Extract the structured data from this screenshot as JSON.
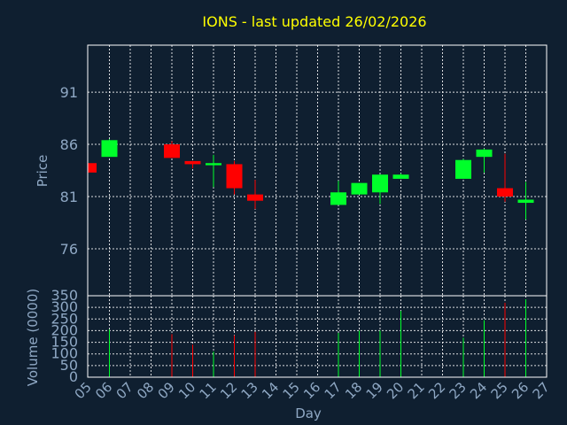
{
  "chart_data": {
    "type": "candlestick",
    "title": "IONS - last updated 26/02/2026",
    "colors": {
      "up": "#00ff2a",
      "down": "#ff0000",
      "background": "#0f1f30",
      "text": "#8fa8c4",
      "title": "#ffff00",
      "grid": "#ffffff"
    },
    "price_panel": {
      "ylabel": "Price",
      "ylim": [
        71.5,
        95.5
      ],
      "yticks": [
        76,
        81,
        86,
        91
      ]
    },
    "volume_panel": {
      "ylabel": "Volume (0000)",
      "ylim": [
        0,
        350
      ],
      "yticks": [
        0,
        50,
        100,
        150,
        200,
        250,
        300,
        350
      ]
    },
    "xlabel": "Day",
    "xticks": [
      "05",
      "06",
      "07",
      "08",
      "09",
      "10",
      "11",
      "12",
      "13",
      "14",
      "15",
      "16",
      "17",
      "18",
      "19",
      "20",
      "21",
      "22",
      "23",
      "24",
      "25",
      "26",
      "27"
    ],
    "candles": [
      {
        "day": 5,
        "open": 84.2,
        "high": 84.2,
        "low": 83.3,
        "close": 83.3,
        "volume": 0
      },
      {
        "day": 6,
        "open": 84.8,
        "high": 86.5,
        "low": 84.8,
        "close": 86.4,
        "volume": 205
      },
      {
        "day": 9,
        "open": 86.0,
        "high": 86.3,
        "low": 84.7,
        "close": 84.7,
        "volume": 185
      },
      {
        "day": 10,
        "open": 84.4,
        "high": 84.4,
        "low": 83.7,
        "close": 84.1,
        "volume": 140
      },
      {
        "day": 11,
        "open": 84.0,
        "high": 85.0,
        "low": 81.9,
        "close": 84.2,
        "volume": 110
      },
      {
        "day": 12,
        "open": 84.1,
        "high": 84.4,
        "low": 81.2,
        "close": 81.8,
        "volume": 180
      },
      {
        "day": 13,
        "open": 81.2,
        "high": 82.6,
        "low": 79.8,
        "close": 80.6,
        "volume": 195
      },
      {
        "day": 17,
        "open": 80.2,
        "high": 82.5,
        "low": 80.2,
        "close": 81.4,
        "volume": 190
      },
      {
        "day": 18,
        "open": 81.2,
        "high": 82.3,
        "low": 81.2,
        "close": 82.3,
        "volume": 200
      },
      {
        "day": 19,
        "open": 81.4,
        "high": 83.1,
        "low": 80.3,
        "close": 83.1,
        "volume": 200
      },
      {
        "day": 20,
        "open": 82.7,
        "high": 83.2,
        "low": 82.7,
        "close": 83.1,
        "volume": 285
      },
      {
        "day": 23,
        "open": 82.7,
        "high": 84.6,
        "low": 82.7,
        "close": 84.5,
        "volume": 170
      },
      {
        "day": 24,
        "open": 84.8,
        "high": 85.6,
        "low": 83.3,
        "close": 85.5,
        "volume": 245
      },
      {
        "day": 25,
        "open": 81.8,
        "high": 85.1,
        "low": 80.5,
        "close": 81.0,
        "volume": 320
      },
      {
        "day": 26,
        "open": 80.4,
        "high": 82.4,
        "low": 78.8,
        "close": 80.7,
        "volume": 335
      }
    ]
  }
}
